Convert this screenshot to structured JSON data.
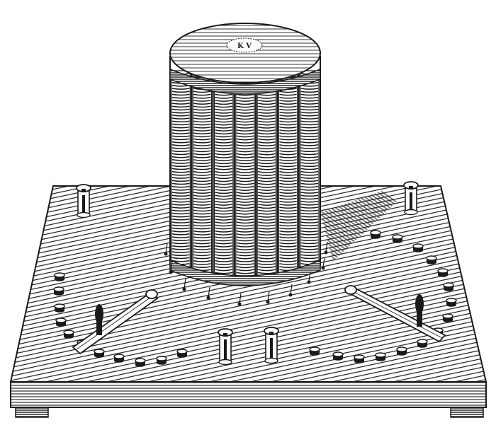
{
  "illustration": {
    "subject": "engraving",
    "ink": "#1a1a1a",
    "paper": "#ffffff",
    "cap_label": "K V",
    "left_arc_contacts": 12,
    "right_arc_contacts": 16,
    "cylinder_columns": 7
  }
}
